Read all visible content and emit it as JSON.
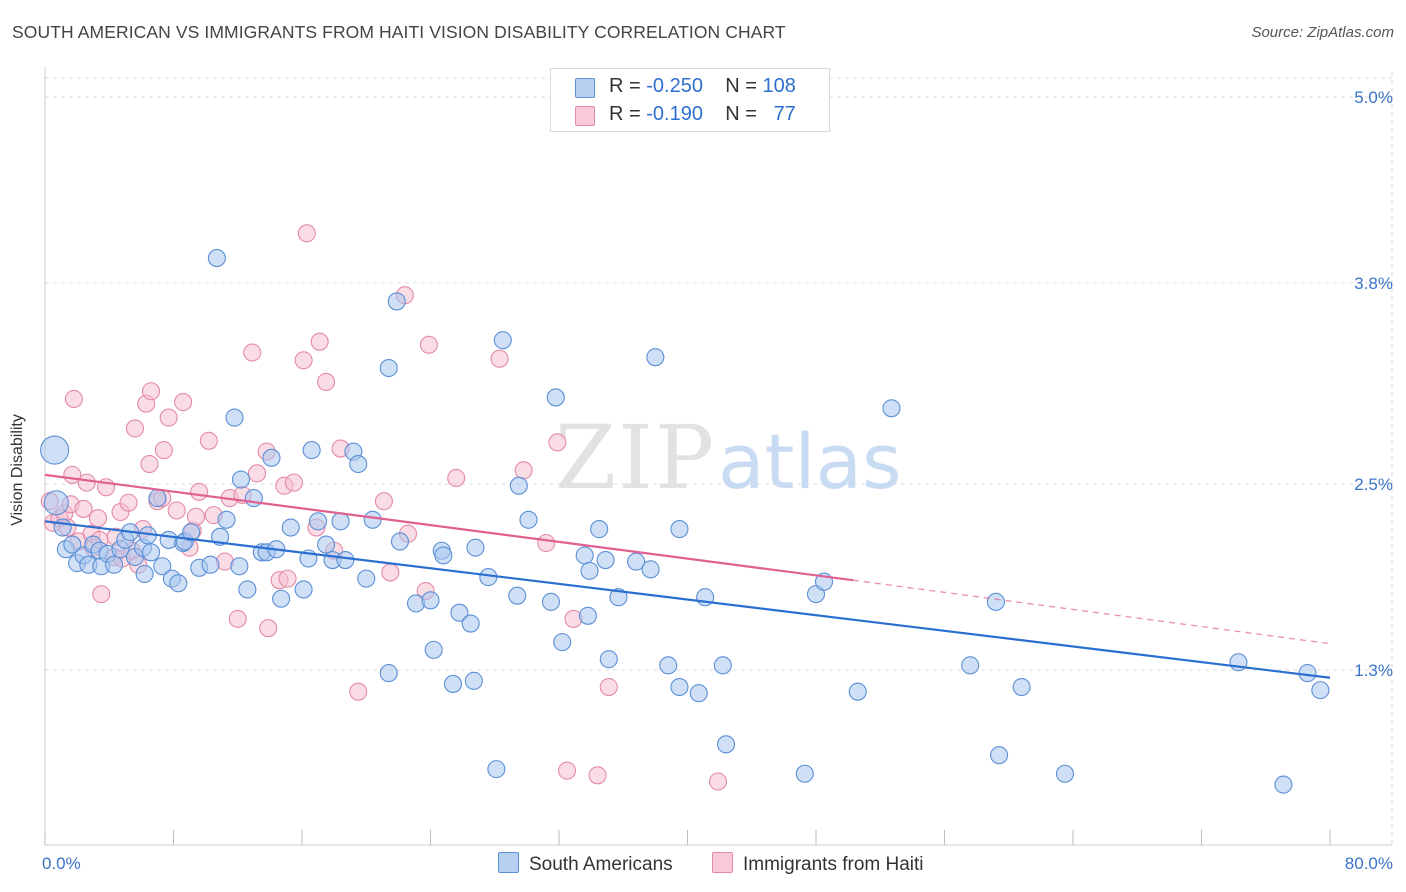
{
  "header": {
    "title": "SOUTH AMERICAN VS IMMIGRANTS FROM HAITI VISION DISABILITY CORRELATION CHART",
    "source": "Source: ZipAtlas.com"
  },
  "watermark": {
    "part1": "ZIP",
    "part2": "atlas"
  },
  "colors": {
    "blue_fill": "#a8c6ee",
    "blue_stroke": "#5b8fd6",
    "blue_line": "#2a6fd0",
    "pink_fill": "#f6bfd0",
    "pink_stroke": "#e48aa8",
    "pink_line": "#e0608f",
    "axis_text": "#3a74c8",
    "grid": "#dddddd"
  },
  "legend": {
    "rows": [
      {
        "r_label": "R =",
        "r_value": "-0.250",
        "n_label": "N =",
        "n_value": "108"
      },
      {
        "r_label": "R =",
        "r_value": "-0.190",
        "n_label": "N =",
        "n_value": "77"
      }
    ]
  },
  "bottom_legend": {
    "series1": "South Americans",
    "series2": "Immigrants from Haiti"
  },
  "chart_data": {
    "type": "scatter",
    "title": "SOUTH AMERICAN VS IMMIGRANTS FROM HAITI VISION DISABILITY CORRELATION CHART",
    "xlabel": "",
    "ylabel": "Vision Disability",
    "xlim": [
      0,
      80
    ],
    "ylim": [
      0,
      5.2
    ],
    "x_tick_labels": [
      "0.0%",
      "80.0%"
    ],
    "y_ticks": [
      {
        "value": 1.3,
        "label": "1.3%"
      },
      {
        "value": 2.5,
        "label": "2.5%"
      },
      {
        "value": 3.8,
        "label": "3.8%"
      },
      {
        "value": 5.0,
        "label": "5.0%"
      }
    ],
    "grid": true,
    "legend_position": "top-center",
    "series": [
      {
        "name": "South Americans",
        "R": -0.25,
        "N": 108,
        "trend": {
          "x0": 0,
          "y0": 2.26,
          "x1": 80,
          "y1": 1.25
        },
        "points": [
          [
            0.6,
            2.72
          ],
          [
            0.7,
            2.38
          ],
          [
            1.1,
            2.22
          ],
          [
            1.3,
            2.08
          ],
          [
            1.7,
            2.11
          ],
          [
            2,
            1.99
          ],
          [
            2.4,
            2.04
          ],
          [
            2.7,
            1.98
          ],
          [
            3,
            2.11
          ],
          [
            3.4,
            2.07
          ],
          [
            3.5,
            1.97
          ],
          [
            3.9,
            2.05
          ],
          [
            4.3,
            1.98
          ],
          [
            4.7,
            2.08
          ],
          [
            5,
            2.14
          ],
          [
            5.3,
            2.19
          ],
          [
            5.6,
            2.03
          ],
          [
            6.1,
            2.09
          ],
          [
            6.2,
            1.92
          ],
          [
            6.4,
            2.17
          ],
          [
            6.6,
            2.06
          ],
          [
            7,
            2.41
          ],
          [
            7.3,
            1.97
          ],
          [
            7.7,
            2.14
          ],
          [
            7.9,
            1.89
          ],
          [
            8.3,
            1.86
          ],
          [
            8.6,
            2.12
          ],
          [
            8.7,
            2.13
          ],
          [
            9.1,
            2.19
          ],
          [
            9.6,
            1.96
          ],
          [
            10.3,
            1.98
          ],
          [
            10.7,
            3.96
          ],
          [
            10.9,
            2.16
          ],
          [
            11.3,
            2.27
          ],
          [
            11.8,
            2.93
          ],
          [
            12.1,
            1.97
          ],
          [
            12.2,
            2.53
          ],
          [
            12.6,
            1.82
          ],
          [
            13,
            2.41
          ],
          [
            13.5,
            2.06
          ],
          [
            13.8,
            2.06
          ],
          [
            14.1,
            2.67
          ],
          [
            14.4,
            2.08
          ],
          [
            14.7,
            1.76
          ],
          [
            15.3,
            2.22
          ],
          [
            16.1,
            1.82
          ],
          [
            16.4,
            2.02
          ],
          [
            16.6,
            2.72
          ],
          [
            17,
            2.26
          ],
          [
            17.5,
            2.11
          ],
          [
            17.9,
            2.01
          ],
          [
            18.4,
            2.26
          ],
          [
            18.7,
            2.01
          ],
          [
            19.2,
            2.71
          ],
          [
            19.5,
            2.63
          ],
          [
            20,
            1.89
          ],
          [
            20.4,
            2.27
          ],
          [
            21.4,
            3.25
          ],
          [
            21.9,
            3.68
          ],
          [
            21.4,
            1.28
          ],
          [
            22.1,
            2.13
          ],
          [
            23.1,
            1.73
          ],
          [
            24.2,
            1.43
          ],
          [
            24,
            1.75
          ],
          [
            24.7,
            2.07
          ],
          [
            24.8,
            2.04
          ],
          [
            25.4,
            1.21
          ],
          [
            25.8,
            1.67
          ],
          [
            26.5,
            1.6
          ],
          [
            26.7,
            1.23
          ],
          [
            26.8,
            2.09
          ],
          [
            27.6,
            1.9
          ],
          [
            28.1,
            0.66
          ],
          [
            28.5,
            3.43
          ],
          [
            29.4,
            1.78
          ],
          [
            29.5,
            2.49
          ],
          [
            30.1,
            2.27
          ],
          [
            31.5,
            1.74
          ],
          [
            31.8,
            3.06
          ],
          [
            32.2,
            1.48
          ],
          [
            33.6,
            2.04
          ],
          [
            33.9,
            1.94
          ],
          [
            33.8,
            1.65
          ],
          [
            34.5,
            2.21
          ],
          [
            34.9,
            2.01
          ],
          [
            35.1,
            1.37
          ],
          [
            35.7,
            1.77
          ],
          [
            36.8,
            2.0
          ],
          [
            37.7,
            1.95
          ],
          [
            38,
            3.32
          ],
          [
            38.8,
            1.33
          ],
          [
            39.5,
            2.21
          ],
          [
            39.5,
            1.19
          ],
          [
            40.7,
            1.15
          ],
          [
            41.1,
            1.77
          ],
          [
            42.2,
            1.33
          ],
          [
            42.4,
            0.82
          ],
          [
            47.3,
            0.63
          ],
          [
            48,
            1.79
          ],
          [
            48.5,
            1.87
          ],
          [
            50.6,
            1.16
          ],
          [
            52.7,
            2.99
          ],
          [
            57.6,
            1.33
          ],
          [
            59.2,
            1.74
          ],
          [
            59.4,
            0.75
          ],
          [
            60.8,
            1.19
          ],
          [
            63.5,
            0.63
          ],
          [
            74.3,
            1.35
          ],
          [
            77.1,
            0.56
          ],
          [
            78.6,
            1.28
          ],
          [
            79.4,
            1.17
          ]
        ]
      },
      {
        "name": "Immigrants from Haiti",
        "R": -0.19,
        "N": 77,
        "trend": {
          "x0": 0,
          "y0": 2.56,
          "x1": 50.3,
          "y1": 1.88,
          "dash_to_x": 80,
          "dash_to_y": 1.47
        },
        "points": [
          [
            0.3,
            2.39
          ],
          [
            0.5,
            2.25
          ],
          [
            0.9,
            2.28
          ],
          [
            1.2,
            2.31
          ],
          [
            1.4,
            2.22
          ],
          [
            1.6,
            2.37
          ],
          [
            1.8,
            3.05
          ],
          [
            1.7,
            2.56
          ],
          [
            2.1,
            2.13
          ],
          [
            2.4,
            2.34
          ],
          [
            2.6,
            2.51
          ],
          [
            2.9,
            2.18
          ],
          [
            3,
            2.09
          ],
          [
            3.3,
            2.28
          ],
          [
            3.4,
            2.14
          ],
          [
            3.5,
            1.79
          ],
          [
            3.8,
            2.48
          ],
          [
            4.3,
            2.03
          ],
          [
            4.4,
            2.16
          ],
          [
            4.7,
            2.32
          ],
          [
            4.8,
            2.02
          ],
          [
            5.2,
            2.38
          ],
          [
            5.4,
            2.07
          ],
          [
            5.6,
            2.86
          ],
          [
            5.8,
            1.98
          ],
          [
            6.1,
            2.21
          ],
          [
            6.3,
            3.02
          ],
          [
            6.5,
            2.63
          ],
          [
            6.6,
            3.1
          ],
          [
            7,
            2.39
          ],
          [
            7.3,
            2.41
          ],
          [
            7.4,
            2.72
          ],
          [
            7.7,
            2.93
          ],
          [
            8.2,
            2.33
          ],
          [
            8.6,
            3.03
          ],
          [
            9,
            2.09
          ],
          [
            9.2,
            2.2
          ],
          [
            9.4,
            2.29
          ],
          [
            9.6,
            2.45
          ],
          [
            10.2,
            2.78
          ],
          [
            10.5,
            2.3
          ],
          [
            11.2,
            2.0
          ],
          [
            11.5,
            2.41
          ],
          [
            12,
            1.63
          ],
          [
            12.3,
            2.43
          ],
          [
            12.9,
            3.35
          ],
          [
            13.2,
            2.57
          ],
          [
            13.8,
            2.71
          ],
          [
            13.9,
            1.57
          ],
          [
            14.6,
            1.88
          ],
          [
            14.9,
            2.49
          ],
          [
            15.1,
            1.89
          ],
          [
            15.5,
            2.51
          ],
          [
            16.1,
            3.3
          ],
          [
            16.3,
            4.12
          ],
          [
            16.9,
            2.22
          ],
          [
            17.1,
            3.42
          ],
          [
            17.5,
            3.16
          ],
          [
            18,
            2.07
          ],
          [
            18.4,
            2.73
          ],
          [
            19.5,
            1.16
          ],
          [
            21.1,
            2.39
          ],
          [
            21.5,
            1.93
          ],
          [
            22.4,
            3.72
          ],
          [
            22.6,
            2.18
          ],
          [
            23.7,
            1.81
          ],
          [
            23.9,
            3.4
          ],
          [
            25.6,
            2.54
          ],
          [
            28.3,
            3.31
          ],
          [
            29.8,
            2.59
          ],
          [
            31.2,
            2.12
          ],
          [
            31.9,
            2.77
          ],
          [
            32.5,
            0.65
          ],
          [
            32.9,
            1.63
          ],
          [
            34.4,
            0.62
          ],
          [
            35.1,
            1.19
          ],
          [
            41.9,
            0.58
          ]
        ]
      }
    ]
  }
}
